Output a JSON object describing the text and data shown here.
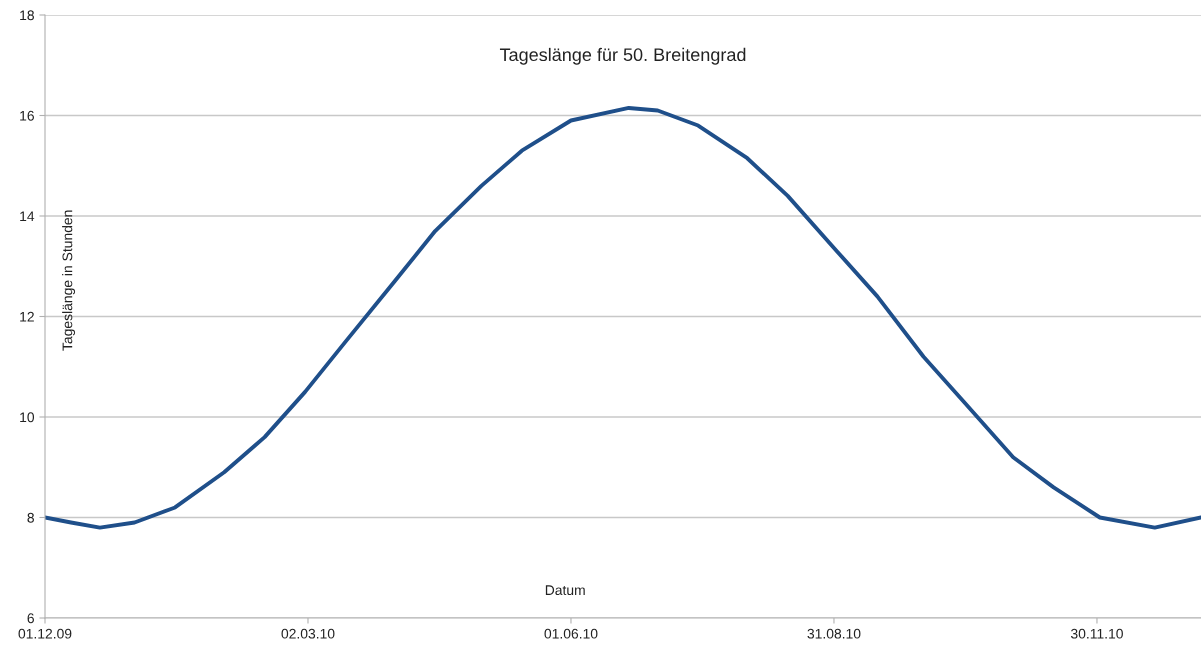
{
  "chart_data": {
    "type": "line",
    "title": "Tageslänge für 50. Breitengrad",
    "xlabel": "Datum",
    "ylabel": "Tageslänge in Stunden",
    "x": [
      "2009-12-01",
      "2009-12-10",
      "2009-12-20",
      "2010-01-01",
      "2010-01-15",
      "2010-02-01",
      "2010-02-15",
      "2010-03-01",
      "2010-03-15",
      "2010-04-01",
      "2010-04-15",
      "2010-05-01",
      "2010-05-15",
      "2010-06-01",
      "2010-06-21",
      "2010-07-01",
      "2010-07-15",
      "2010-08-01",
      "2010-08-15",
      "2010-09-01",
      "2010-09-15",
      "2010-10-01",
      "2010-10-15",
      "2010-11-01",
      "2010-11-15",
      "2010-12-01",
      "2010-12-20",
      "2011-01-05"
    ],
    "series": [
      {
        "color": "#1f4f8a",
        "values": [
          8.0,
          7.9,
          7.8,
          7.9,
          8.2,
          8.9,
          9.6,
          10.5,
          11.5,
          12.7,
          13.7,
          14.6,
          15.3,
          15.9,
          16.15,
          16.1,
          15.8,
          15.15,
          14.4,
          13.3,
          12.4,
          11.2,
          10.3,
          9.2,
          8.6,
          8.0,
          7.8,
          8.0
        ]
      }
    ],
    "xlim": [
      "2009-12-01",
      "2011-01-05"
    ],
    "xticks": [
      {
        "value": "2009-12-01",
        "label": "01.12.09"
      },
      {
        "value": "2010-03-02",
        "label": "02.03.10"
      },
      {
        "value": "2010-06-01",
        "label": "01.06.10"
      },
      {
        "value": "2010-08-31",
        "label": "31.08.10"
      },
      {
        "value": "2010-11-30",
        "label": "30.11.10"
      }
    ],
    "ylim": [
      6,
      18
    ],
    "yticks": [
      6,
      8,
      10,
      12,
      14,
      16,
      18
    ],
    "grid": "y",
    "line_style": "solid"
  }
}
